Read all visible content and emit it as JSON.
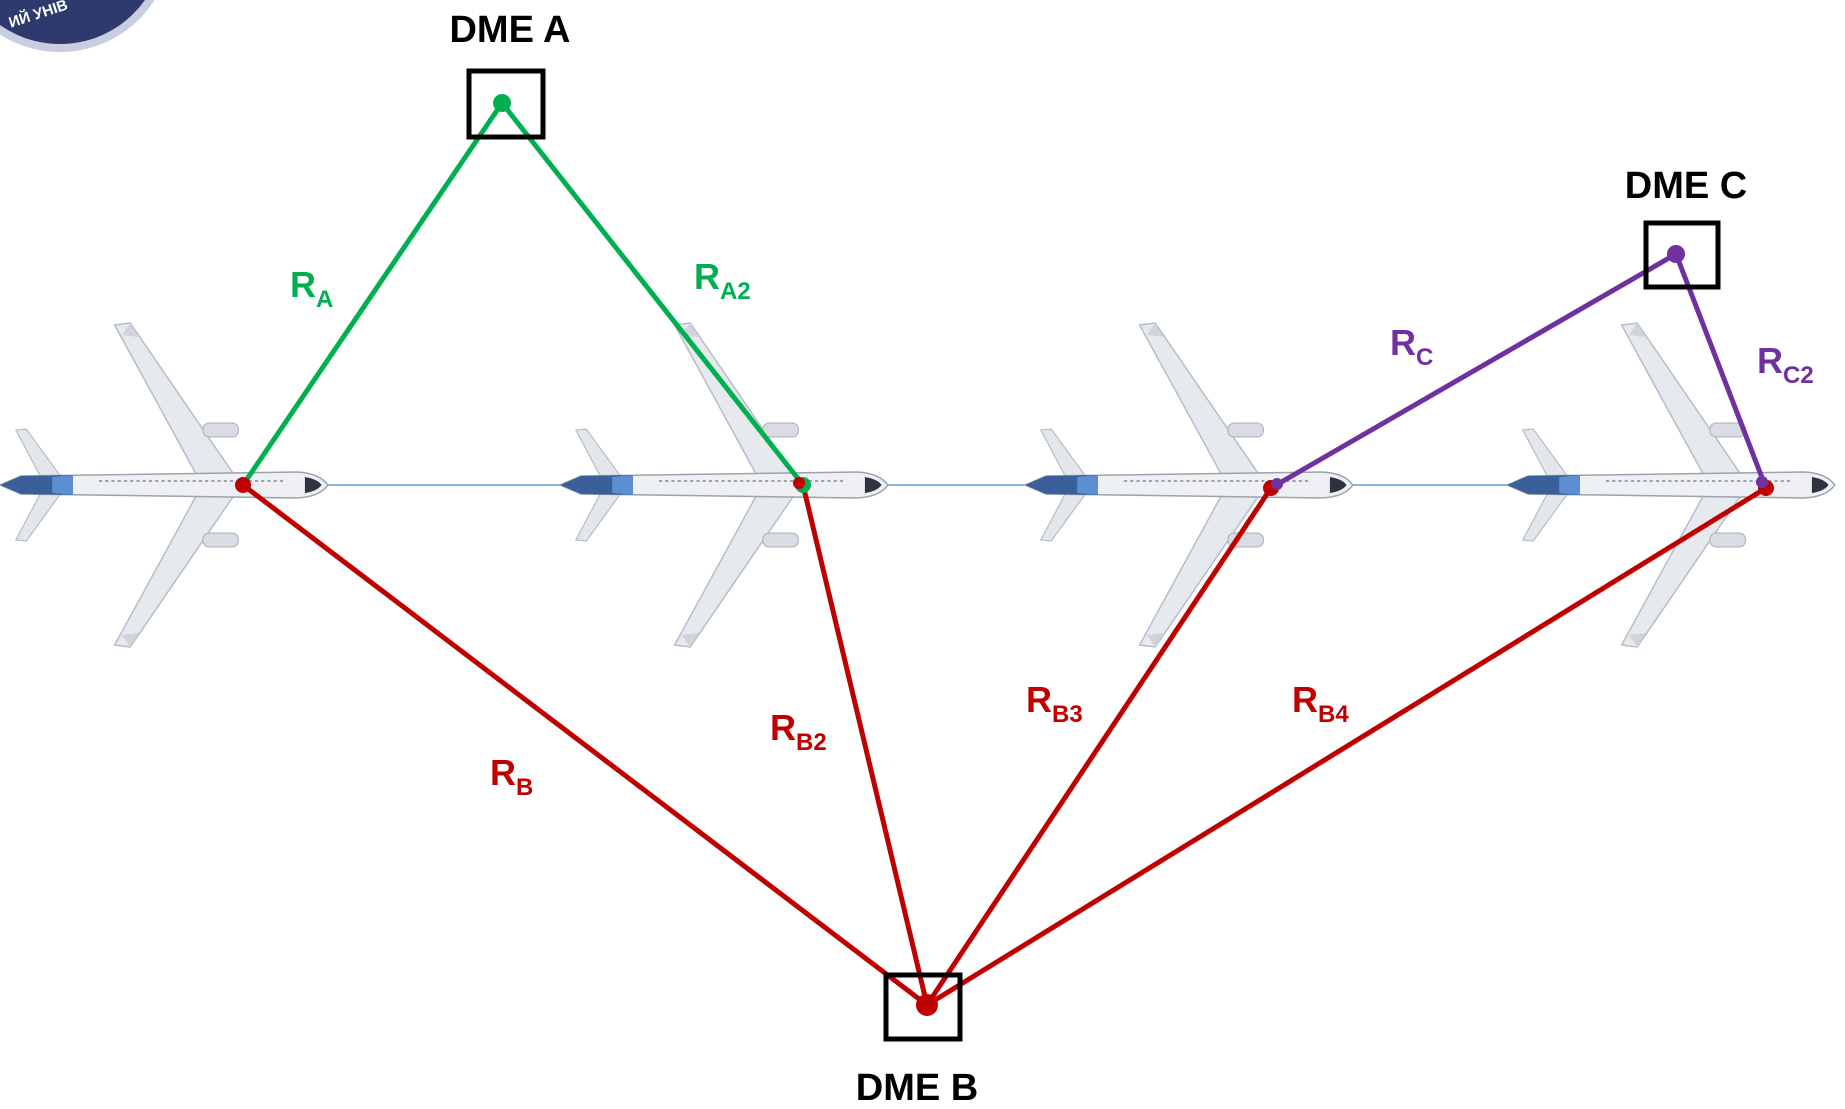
{
  "logo": {
    "text": "ИЙ УНІВ",
    "colors": {
      "fill": "#2e3a6e",
      "ring": "#c8cde0"
    }
  },
  "dme_stations": {
    "a": {
      "label": "DME A",
      "color": "#000000"
    },
    "b": {
      "label": "DME B",
      "color": "#000000"
    },
    "c": {
      "label": "DME C",
      "color": "#000000"
    }
  },
  "ranges": {
    "ra": {
      "main": "R",
      "sub": "A",
      "color": "#00b050"
    },
    "ra2": {
      "main": "R",
      "sub": "A2",
      "color": "#00b050"
    },
    "rb": {
      "main": "R",
      "sub": "B",
      "color": "#c00000"
    },
    "rb2": {
      "main": "R",
      "sub": "B2",
      "color": "#c00000"
    },
    "rb3": {
      "main": "R",
      "sub": "B3",
      "color": "#c00000"
    },
    "rb4": {
      "main": "R",
      "sub": "B4",
      "color": "#c00000"
    },
    "rc": {
      "main": "R",
      "sub": "C",
      "color": "#7030a0"
    },
    "rc2": {
      "main": "R",
      "sub": "C2",
      "color": "#7030a0"
    }
  },
  "flight_track": {
    "color": "#5b9bd5"
  },
  "aircraft": {
    "count": 4,
    "icon": "airliner-top-view-icon"
  }
}
